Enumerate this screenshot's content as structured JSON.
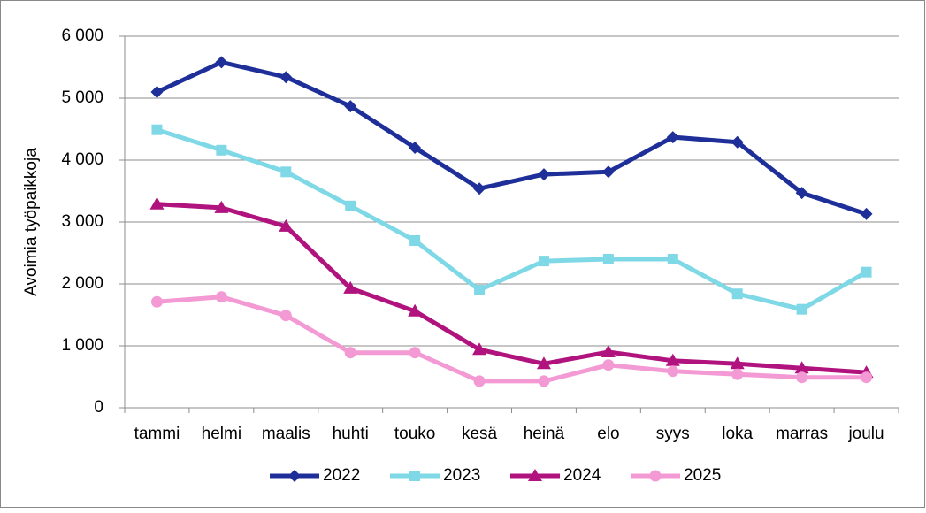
{
  "chart_data": {
    "type": "line",
    "y_label": "Avoimia työpaikkoja",
    "categories": [
      "tammi",
      "helmi",
      "maalis",
      "huhti",
      "touko",
      "kesä",
      "heinä",
      "elo",
      "syys",
      "loka",
      "marras",
      "joulu"
    ],
    "series": [
      {
        "name": "2022",
        "color": "#1f2f99",
        "marker": "diamond",
        "values": [
          5100,
          5580,
          5340,
          4870,
          4200,
          3540,
          3770,
          3810,
          4370,
          4290,
          3470,
          3130
        ]
      },
      {
        "name": "2023",
        "color": "#7fd8e6",
        "marker": "square",
        "values": [
          4490,
          4160,
          3810,
          3260,
          2700,
          1900,
          2370,
          2400,
          2400,
          1840,
          1590,
          2190
        ]
      },
      {
        "name": "2024",
        "color": "#b0127e",
        "marker": "triangle",
        "values": [
          3290,
          3230,
          2930,
          1930,
          1560,
          940,
          710,
          900,
          760,
          710,
          640,
          570
        ]
      },
      {
        "name": "2025",
        "color": "#f39ad4",
        "marker": "circle",
        "values": [
          1710,
          1790,
          1490,
          890,
          890,
          430,
          430,
          690,
          590,
          540,
          490,
          490
        ]
      }
    ],
    "ylim": [
      0,
      6000
    ],
    "yticks": [
      0,
      {
        "value": 1000,
        "label": "1 000"
      },
      {
        "value": 2000,
        "label": "2 000"
      },
      {
        "value": 3000,
        "label": "3 000"
      },
      {
        "value": 4000,
        "label": "4 000"
      },
      {
        "value": 5000,
        "label": "5 000"
      },
      {
        "value": 6000,
        "label": "6 000"
      }
    ],
    "grid": true,
    "legend": "bottom"
  }
}
